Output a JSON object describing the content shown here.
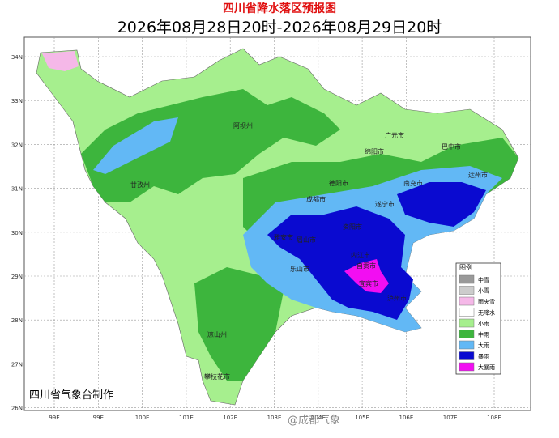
{
  "header": {
    "title": "四川省降水落区预报图",
    "subtitle": "2026年08月28日20时-2026年08月29日20时"
  },
  "map": {
    "lat_labels": [
      "34N",
      "33N",
      "32N",
      "31N",
      "30N",
      "29N",
      "28N",
      "27N",
      "26N"
    ],
    "lon_labels": [
      "99E",
      "99E",
      "100E",
      "101E",
      "102E",
      "103E",
      "104E",
      "105E",
      "106E",
      "107E",
      "108E"
    ],
    "cities": [
      "阿坝州",
      "广元市",
      "巴中市",
      "绵阳市",
      "甘孜州",
      "德阳市",
      "达州市",
      "南充市",
      "成都市",
      "遂宁市",
      "雅安市",
      "眉山市",
      "资阳市",
      "乐山市",
      "内江市",
      "自贡市",
      "宜宾市",
      "泸州市",
      "凉山州",
      "攀枝花市"
    ]
  },
  "legend": {
    "title": "图例",
    "items": [
      {
        "label": "中雪",
        "color": "#999999"
      },
      {
        "label": "小雪",
        "color": "#cccccc"
      },
      {
        "label": "雨夹雪",
        "color": "#f5b8e8"
      },
      {
        "label": "无降水",
        "color": "#ffffff"
      },
      {
        "label": "小雨",
        "color": "#a6ef8e"
      },
      {
        "label": "中雨",
        "color": "#3db53d"
      },
      {
        "label": "大雨",
        "color": "#62b8f5"
      },
      {
        "label": "暴雨",
        "color": "#0a0ad0"
      },
      {
        "label": "大暴雨",
        "color": "#f20ef2"
      }
    ]
  },
  "credit": "四川省气象台制作",
  "watermark": "@成都气象"
}
